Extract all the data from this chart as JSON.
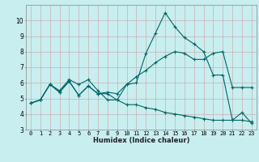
{
  "xlabel": "Humidex (Indice chaleur)",
  "bg_color": "#c8eef0",
  "grid_color": "#d0a0a0",
  "line_color": "#006666",
  "xlim": [
    -0.5,
    23.5
  ],
  "ylim": [
    3,
    11
  ],
  "xticks": [
    0,
    1,
    2,
    3,
    4,
    5,
    6,
    7,
    8,
    9,
    10,
    11,
    12,
    13,
    14,
    15,
    16,
    17,
    18,
    19,
    20,
    21,
    22,
    23
  ],
  "yticks": [
    3,
    4,
    5,
    6,
    7,
    8,
    9,
    10
  ],
  "line1_x": [
    0,
    1,
    2,
    3,
    4,
    5,
    6,
    7,
    8,
    9,
    10,
    11,
    12,
    13,
    14,
    15,
    16,
    17,
    18,
    19,
    20,
    21,
    22,
    23
  ],
  "line1_y": [
    4.7,
    4.9,
    5.9,
    5.5,
    6.2,
    5.9,
    6.2,
    5.5,
    4.9,
    4.9,
    5.9,
    6.0,
    7.9,
    9.2,
    10.5,
    9.6,
    8.9,
    8.5,
    8.0,
    6.5,
    6.5,
    3.6,
    4.1,
    3.4
  ],
  "line2_x": [
    0,
    1,
    2,
    3,
    4,
    5,
    6,
    7,
    8,
    9,
    10,
    11,
    12,
    13,
    14,
    15,
    16,
    17,
    18,
    19,
    20,
    21,
    22,
    23
  ],
  "line2_y": [
    4.7,
    4.9,
    5.9,
    5.4,
    6.1,
    5.2,
    5.8,
    5.3,
    5.4,
    5.3,
    5.9,
    6.4,
    6.8,
    7.3,
    7.7,
    8.0,
    7.9,
    7.5,
    7.5,
    7.9,
    8.0,
    5.7,
    5.7,
    5.7
  ],
  "line3_x": [
    0,
    1,
    2,
    3,
    4,
    5,
    6,
    7,
    8,
    9,
    10,
    11,
    12,
    13,
    14,
    15,
    16,
    17,
    18,
    19,
    20,
    21,
    22,
    23
  ],
  "line3_y": [
    4.7,
    4.9,
    5.9,
    5.4,
    6.1,
    5.2,
    5.8,
    5.3,
    5.3,
    4.9,
    4.6,
    4.6,
    4.4,
    4.3,
    4.1,
    4.0,
    3.9,
    3.8,
    3.7,
    3.6,
    3.6,
    3.6,
    3.6,
    3.5
  ],
  "xlabel_fontsize": 6,
  "tick_fontsize": 5,
  "ytick_fontsize": 5.5
}
